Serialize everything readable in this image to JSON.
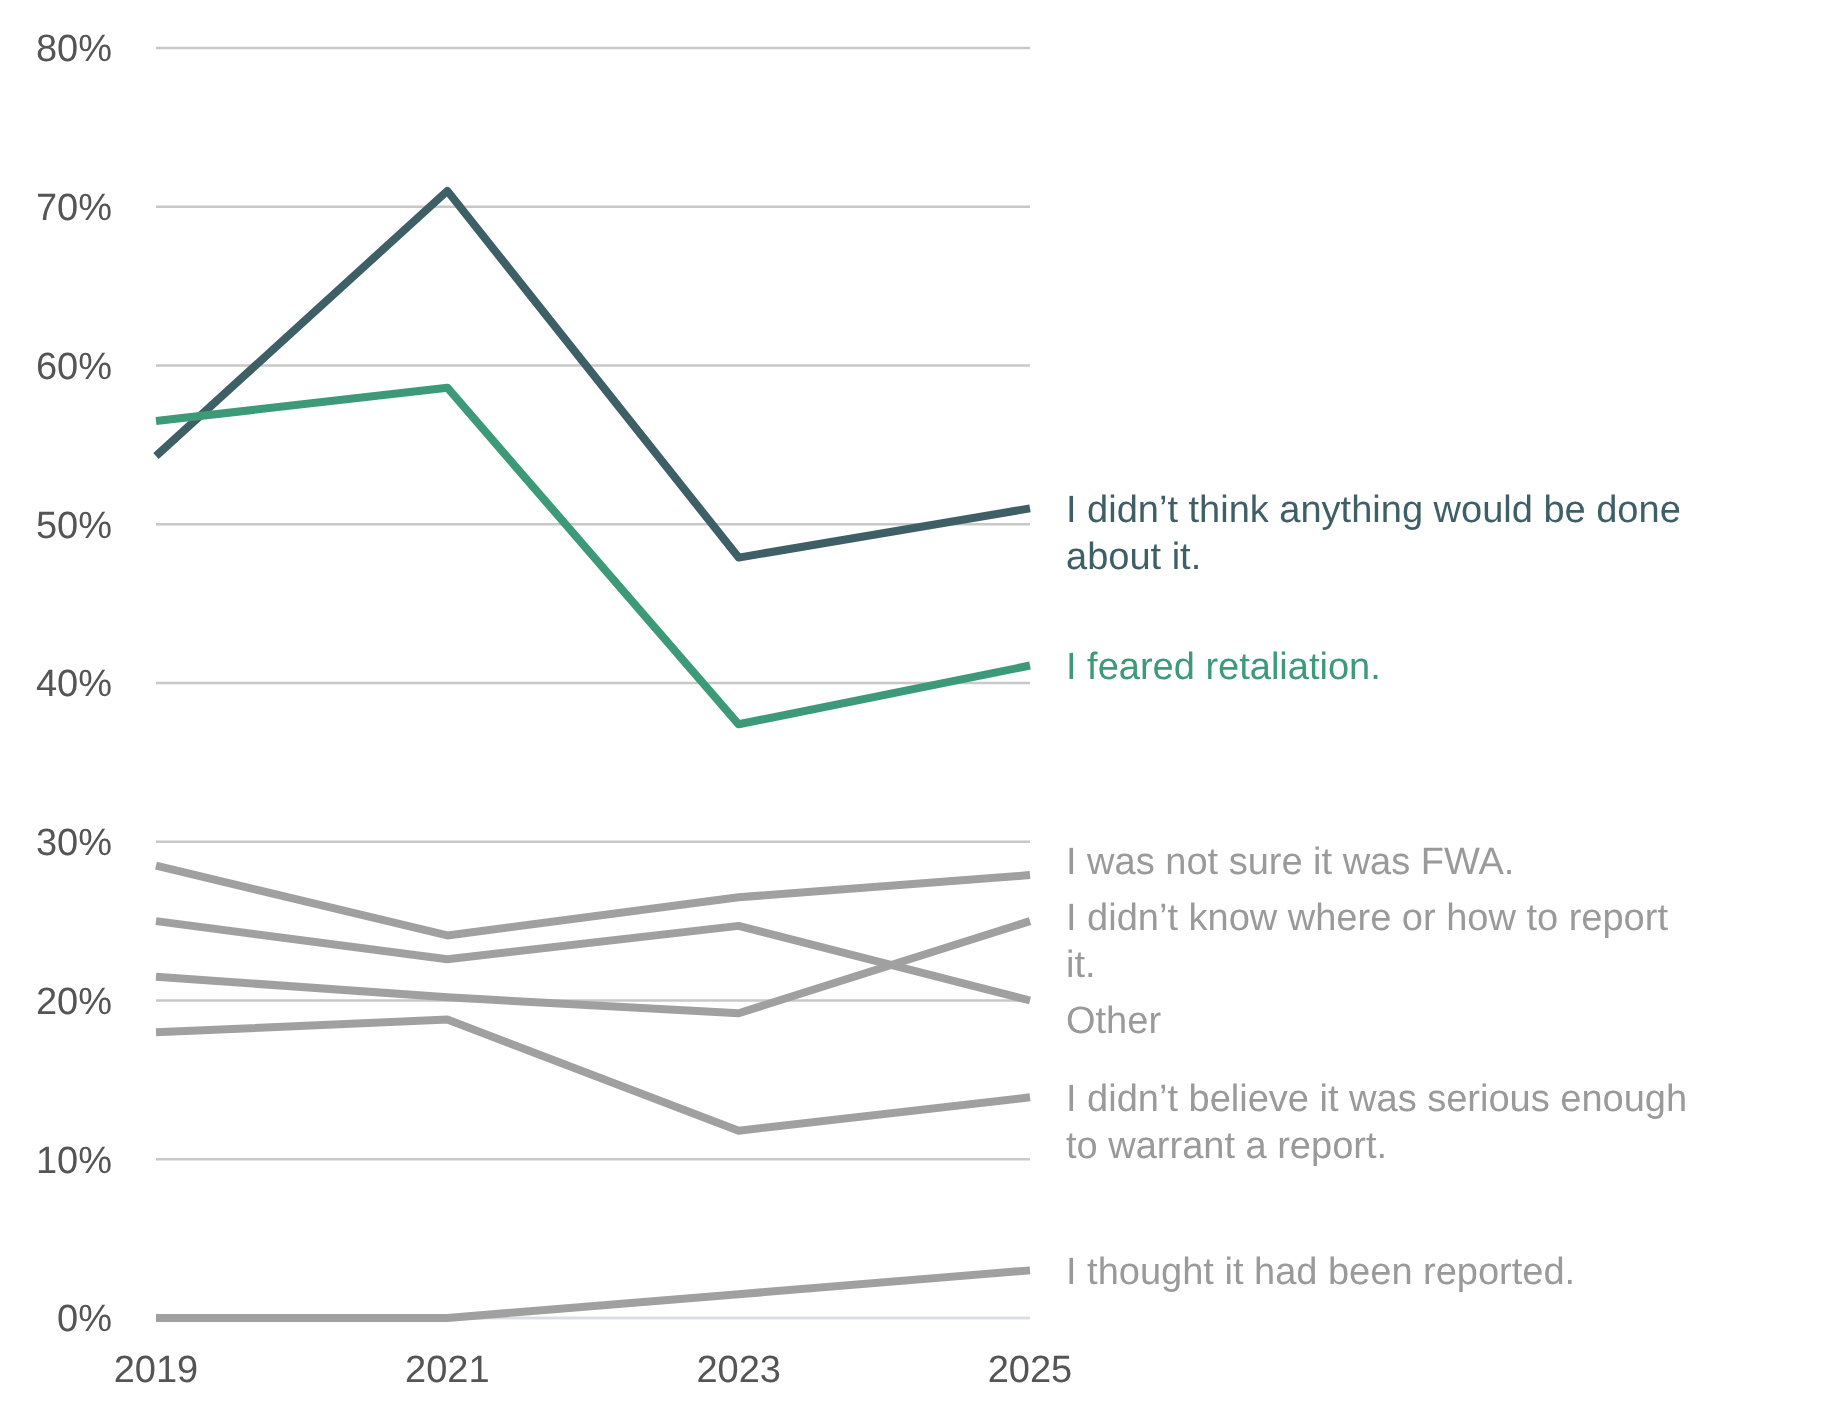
{
  "chart_data": {
    "type": "line",
    "x": [
      2019,
      2021,
      2023,
      2025
    ],
    "xlim": [
      2019,
      2025
    ],
    "xticks": [
      2019,
      2021,
      2023,
      2025
    ],
    "ylim": [
      0,
      80
    ],
    "yticks": [
      {
        "value": 0,
        "label": "0%"
      },
      {
        "value": 10,
        "label": "10%"
      },
      {
        "value": 20,
        "label": "20%"
      },
      {
        "value": 30,
        "label": "30%"
      },
      {
        "value": 40,
        "label": "40%"
      },
      {
        "value": 50,
        "label": "50%"
      },
      {
        "value": 60,
        "label": "60%"
      },
      {
        "value": 70,
        "label": "70%"
      },
      {
        "value": 80,
        "label": "80%"
      }
    ],
    "grid": "y",
    "marker": "none",
    "line_style": "solid",
    "series": [
      {
        "name": "I didn’t think anything would be done about it.",
        "color": "#3f5f66",
        "values": [
          54.3,
          71.0,
          47.9,
          51.0
        ]
      },
      {
        "name": "I feared retaliation.",
        "color": "#3d9a78",
        "values": [
          56.5,
          58.6,
          37.4,
          41.1
        ]
      },
      {
        "name": "I was not sure it was FWA.",
        "color": "#a0a0a0",
        "values": [
          28.5,
          24.1,
          26.5,
          27.9
        ]
      },
      {
        "name": "I didn’t know where or how to report it.",
        "color": "#a0a0a0",
        "values": [
          21.5,
          20.2,
          19.2,
          25.0
        ]
      },
      {
        "name": "Other",
        "color": "#a0a0a0",
        "values": [
          25.0,
          22.6,
          24.7,
          20.0
        ]
      },
      {
        "name": "I didn’t believe it was serious enough to warrant a report.",
        "color": "#a0a0a0",
        "values": [
          18.0,
          18.8,
          11.8,
          13.9
        ]
      },
      {
        "name": "I thought it had been reported.",
        "color": "#a0a0a0",
        "values": [
          0,
          0,
          1.5,
          3.0
        ]
      }
    ]
  }
}
